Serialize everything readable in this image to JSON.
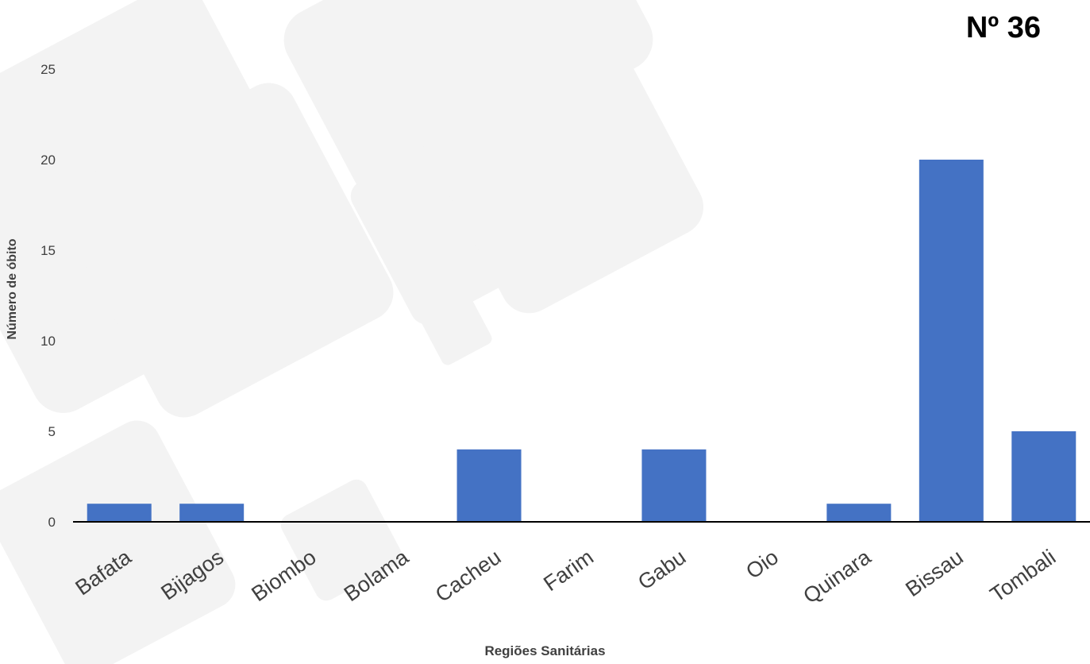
{
  "badge": "Nº 36",
  "chart_data": {
    "type": "bar",
    "xlabel": "Regiões Sanitárias",
    "ylabel": "Número de óbito",
    "categories": [
      "Bafata",
      "Bijagos",
      "Biombo",
      "Bolama",
      "Cacheu",
      "Farim",
      "Gabu",
      "Oio",
      "Quinara",
      "Bissau",
      "Tombali"
    ],
    "values": [
      1,
      1,
      0,
      0,
      4,
      0,
      4,
      0,
      1,
      20,
      5
    ],
    "ylim": [
      0,
      25
    ],
    "yticks": [
      0,
      5,
      10,
      15,
      20,
      25
    ],
    "grid": false,
    "bar_color": "#4472C4"
  }
}
